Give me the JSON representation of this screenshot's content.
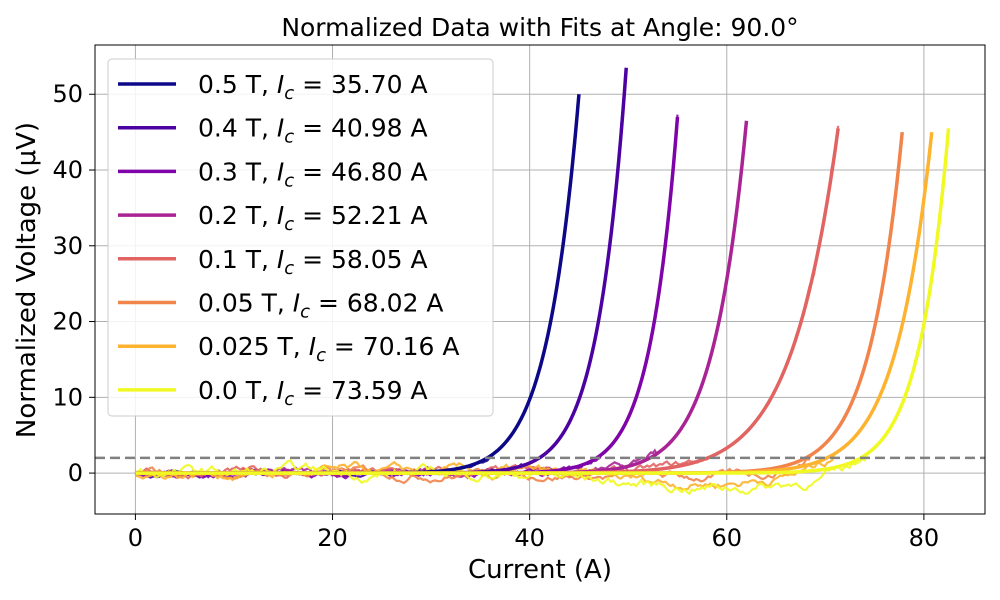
{
  "chart_data": {
    "type": "line",
    "title": "Normalized Data with Fits at Angle: 90.0°",
    "xlabel": "Current (A)",
    "ylabel": "Normalized Voltage (μV)",
    "xlim": [
      -4.1,
      86.2
    ],
    "ylim": [
      -5.4,
      56.5
    ],
    "xticks": [
      0,
      20,
      40,
      60,
      80
    ],
    "yticks": [
      0,
      10,
      20,
      30,
      40,
      50
    ],
    "grid": true,
    "legend_position": "top-left",
    "threshold": {
      "y": 2.0,
      "style": "dashed",
      "color": "#808080"
    },
    "series": [
      {
        "name": "0.5 T, I_c = 35.70 A",
        "field": "0.5 T",
        "ic_text": "35.70 A",
        "ic": 35.7,
        "x_end": 45.0,
        "y_end": 50.0,
        "x_max_data": 45.0,
        "color": "#0d0887"
      },
      {
        "name": "0.4 T, I_c = 40.98 A",
        "field": "0.4 T",
        "ic_text": "40.98 A",
        "ic": 40.98,
        "x_end": 49.8,
        "y_end": 53.5,
        "x_max_data": 49.7,
        "color": "#4c02a1"
      },
      {
        "name": "0.3 T, I_c = 46.80 A",
        "field": "0.3 T",
        "ic_text": "46.80 A",
        "ic": 46.8,
        "x_end": 55.0,
        "y_end": 47.0,
        "x_max_data": 55.0,
        "color": "#7e03a8"
      },
      {
        "name": "0.2 T, I_c = 52.21 A",
        "field": "0.2 T",
        "ic_text": "52.21 A",
        "ic": 52.21,
        "x_end": 62.0,
        "y_end": 46.5,
        "x_max_data": 62.0,
        "color": "#a92395"
      },
      {
        "name": "0.1 T, I_c = 58.05 A",
        "field": "0.1 T",
        "ic_text": "58.05 A",
        "ic": 58.05,
        "x_end": 71.3,
        "y_end": 45.5,
        "x_max_data": 71.3,
        "color": "#e16462"
      },
      {
        "name": "0.05 T, I_c = 68.02 A",
        "field": "0.05 T",
        "ic_text": "68.02 A",
        "ic": 68.02,
        "x_end": 77.8,
        "y_end": 45.0,
        "x_max_data": 77.8,
        "color": "#f1844b"
      },
      {
        "name": "0.025 T, I_c = 70.16 A",
        "field": "0.025 T",
        "ic_text": "70.16 A",
        "ic": 70.16,
        "x_end": 80.8,
        "y_end": 45.0,
        "x_max_data": 80.8,
        "color": "#fdb32f"
      },
      {
        "name": "0.0 T, I_c = 73.59 A",
        "field": "0.0 T",
        "ic_text": "73.59 A",
        "ic": 73.59,
        "x_end": 82.5,
        "y_end": 45.5,
        "x_max_data": 82.5,
        "color": "#f0f921"
      }
    ]
  }
}
